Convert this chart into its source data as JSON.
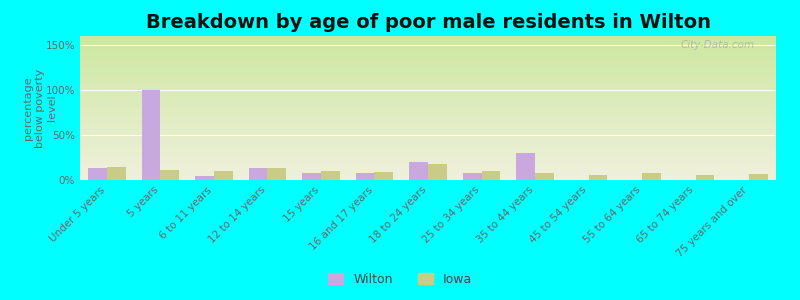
{
  "title": "Breakdown by age of poor male residents in Wilton",
  "ylabel": "percentage\nbelow poverty\nlevel",
  "categories": [
    "Under 5 years",
    "5 years",
    "6 to 11 years",
    "12 to 14 years",
    "15 years",
    "16 and 17 years",
    "18 to 24 years",
    "25 to 34 years",
    "35 to 44 years",
    "45 to 54 years",
    "55 to 64 years",
    "65 to 74 years",
    "75 years and over"
  ],
  "wilton": [
    13,
    100,
    5,
    13,
    8,
    8,
    20,
    8,
    30,
    0,
    0,
    0,
    0
  ],
  "iowa": [
    14,
    11,
    10,
    13,
    10,
    9,
    18,
    10,
    8,
    6,
    8,
    6,
    7
  ],
  "wilton_color": "#c9a8e0",
  "iowa_color": "#c8cc87",
  "background_color": "#00ffff",
  "grad_top": "#cce8a0",
  "grad_bottom": "#f0f0dc",
  "bar_width": 0.35,
  "ylim": [
    0,
    160
  ],
  "yticks": [
    0,
    50,
    100,
    150
  ],
  "ytick_labels": [
    "0%",
    "50%",
    "100%",
    "150%"
  ],
  "title_fontsize": 14,
  "axis_label_fontsize": 8,
  "tick_fontsize": 7.5,
  "legend_labels": [
    "Wilton",
    "Iowa"
  ],
  "watermark": "City-Data.com"
}
